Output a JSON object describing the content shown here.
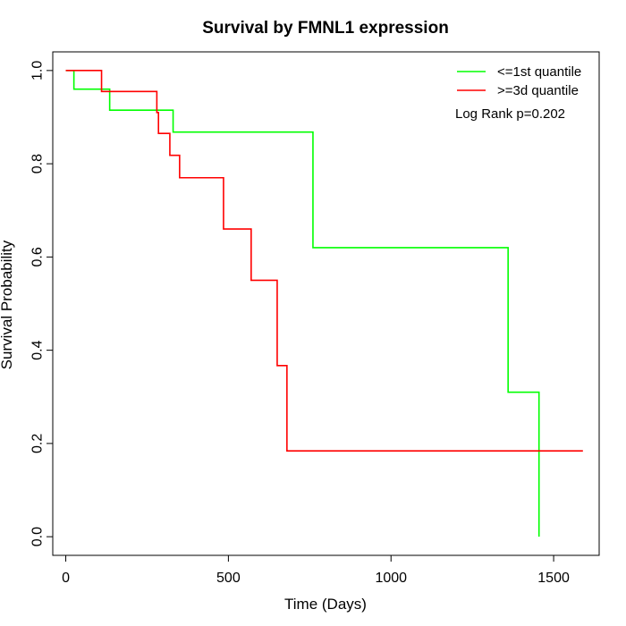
{
  "chart_data": {
    "type": "line",
    "title": "Survival by FMNL1 expression",
    "xlabel": "Time (Days)",
    "ylabel": "Survival Probability",
    "xlim": [
      -40,
      1640
    ],
    "ylim": [
      -0.04,
      1.04
    ],
    "x_ticks": [
      0,
      500,
      1000,
      1500
    ],
    "y_ticks": [
      0.0,
      0.2,
      0.4,
      0.6,
      0.8,
      1.0
    ],
    "x_tick_labels": [
      "0",
      "500",
      "1000",
      "1500"
    ],
    "y_tick_labels": [
      "0.0",
      "0.2",
      "0.4",
      "0.6",
      "0.8",
      "1.0"
    ],
    "grid": false,
    "legend_position": "top-right",
    "annotation": "Log Rank p=0.202",
    "series": [
      {
        "name": "<=1st quantile",
        "color": "#00ff00",
        "step": true,
        "points": [
          [
            0,
            1.0
          ],
          [
            25,
            0.96
          ],
          [
            135,
            0.915
          ],
          [
            330,
            0.868
          ],
          [
            760,
            0.62
          ],
          [
            1360,
            0.31
          ],
          [
            1455,
            0.0
          ]
        ]
      },
      {
        "name": ">=3d quantile",
        "color": "#ff0000",
        "step": true,
        "points": [
          [
            0,
            1.0
          ],
          [
            110,
            0.955
          ],
          [
            280,
            0.91
          ],
          [
            285,
            0.865
          ],
          [
            320,
            0.818
          ],
          [
            350,
            0.77
          ],
          [
            485,
            0.66
          ],
          [
            570,
            0.55
          ],
          [
            650,
            0.367
          ],
          [
            680,
            0.184
          ],
          [
            1590,
            0.184
          ]
        ]
      }
    ]
  }
}
